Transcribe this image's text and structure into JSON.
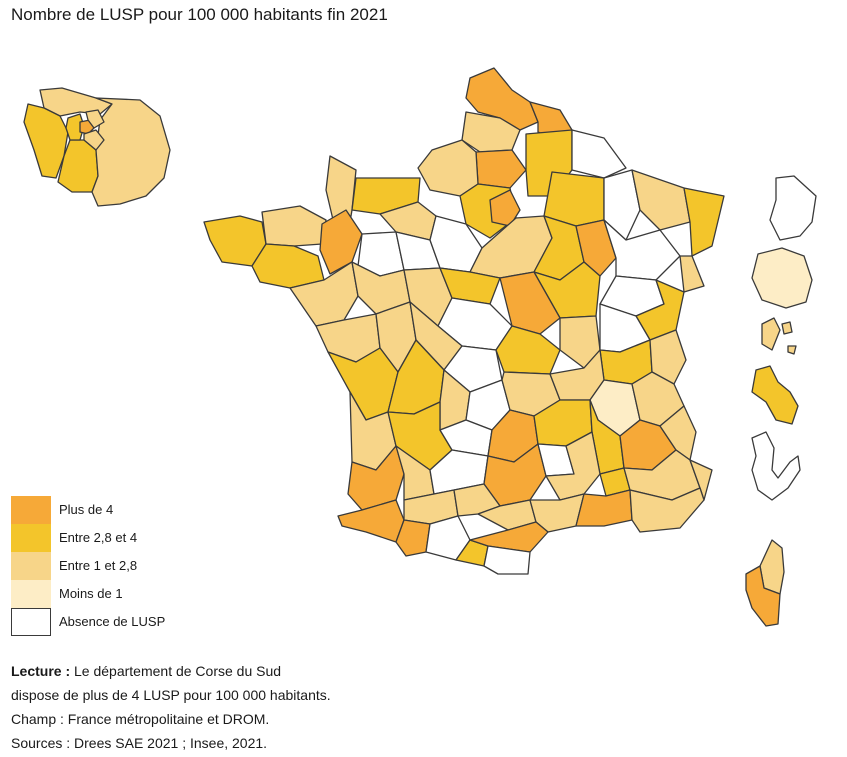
{
  "title": "Nombre de LUSP pour 100 000 habitants fin 2021",
  "colors": {
    "plus_de_4": "#f6a938",
    "entre_2_8_et_4": "#f3c52b",
    "entre_1_et_2_8": "#f7d589",
    "moins_de_1": "#fdedc6",
    "absence": "#ffffff",
    "border": "#3a3a3a"
  },
  "legend": [
    {
      "label": "Plus de 4",
      "color": "#f6a938"
    },
    {
      "label": "Entre 2,8 et 4",
      "color": "#f3c52b"
    },
    {
      "label": "Entre 1 et 2,8",
      "color": "#f7d589"
    },
    {
      "label": "Moins de 1",
      "color": "#fdedc6"
    },
    {
      "label": "Absence de LUSP",
      "color": "#ffffff"
    }
  ],
  "notes": {
    "lecture_label": "Lecture :",
    "lecture_text": " Le département de Corse du Sud",
    "lecture_text2": "dispose de plus de 4 LUSP pour 100 000 habitants.",
    "champ": "Champ : France métropolitaine et DROM.",
    "sources": "Sources : Drees SAE 2021 ; Insee, 2021."
  }
}
